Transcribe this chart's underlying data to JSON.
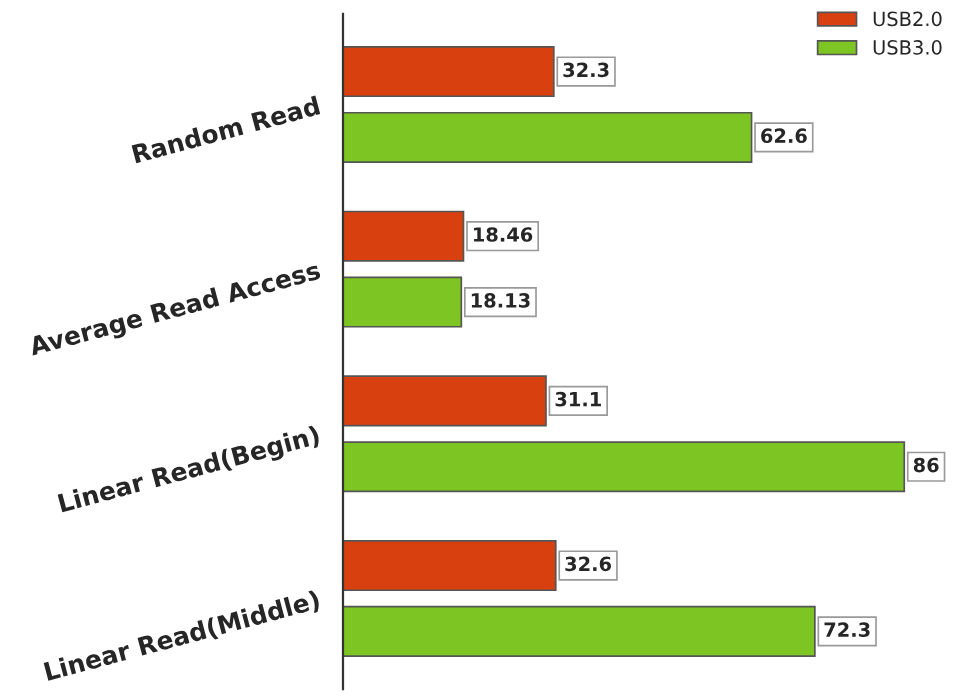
{
  "chart_data": {
    "type": "bar",
    "orientation": "horizontal",
    "categories": [
      "Random Read",
      "Average Read Access",
      "Linear Read(Begin)",
      "Linear Read(Middle)"
    ],
    "series": [
      {
        "name": "USB2.0",
        "color": "#d8400f",
        "values": [
          32.3,
          18.46,
          31.1,
          32.6
        ]
      },
      {
        "name": "USB3.0",
        "color": "#7cc522",
        "values": [
          62.6,
          18.13,
          86,
          72.3
        ]
      }
    ],
    "data_labels": true,
    "legend": "top right",
    "grid": false,
    "tick_labels": "y"
  }
}
